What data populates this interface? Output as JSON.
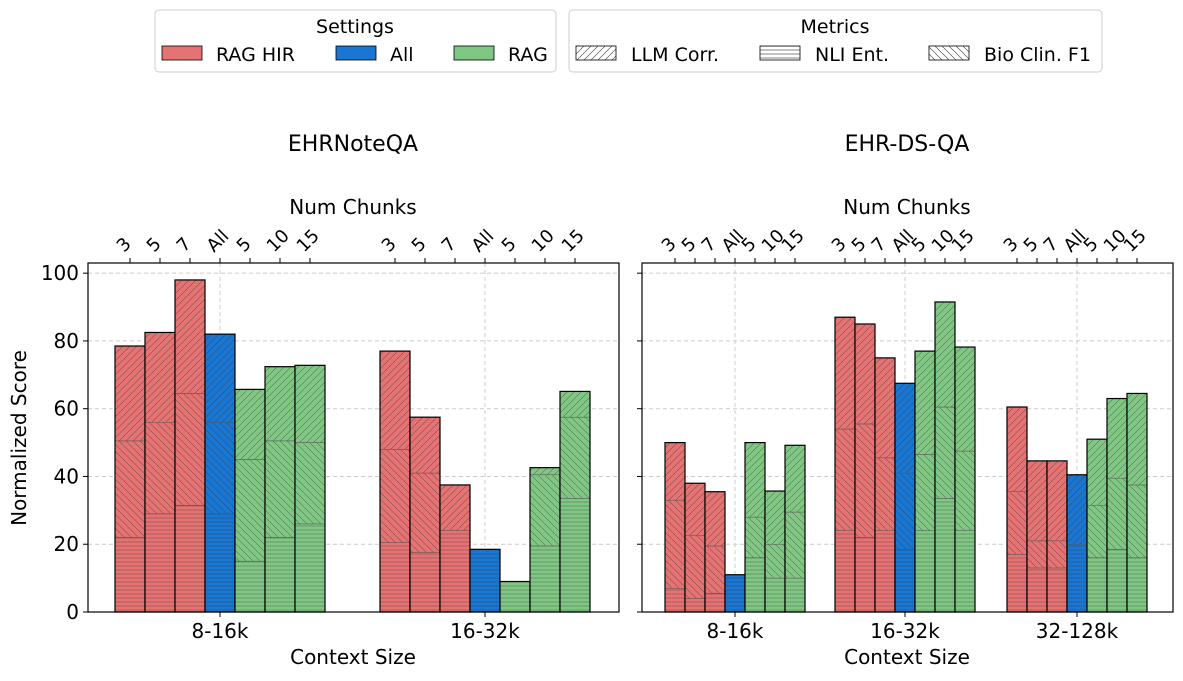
{
  "legends": {
    "settings": {
      "title": "Settings",
      "items": [
        {
          "label": "RAG HIR",
          "color": "#e57373"
        },
        {
          "label": "All",
          "color": "#1976d2"
        },
        {
          "label": "RAG",
          "color": "#81c784"
        }
      ]
    },
    "metrics": {
      "title": "Metrics",
      "items": [
        {
          "label": "LLM Corr.",
          "pattern": "diag-up"
        },
        {
          "label": "NLI Ent.",
          "pattern": "horizontal"
        },
        {
          "label": "Bio Clin. F1",
          "pattern": "diag-down"
        }
      ]
    }
  },
  "colors": {
    "RAG HIR": "#e57373",
    "All": "#1976d2",
    "RAG": "#81c784"
  },
  "chart_data": [
    {
      "type": "bar",
      "stacked": true,
      "title": "EHRNoteQA",
      "xlabel": "Context Size",
      "ylabel": "Normalized Score",
      "top_xlabel": "Num Chunks",
      "ylim": [
        0,
        103
      ],
      "yticks": [
        0,
        20,
        40,
        60,
        80,
        100
      ],
      "grid": true,
      "categories": [
        "8-16k",
        "16-32k"
      ],
      "stack_order": [
        "NLI Ent.",
        "Bio Clin. F1",
        "LLM Corr."
      ],
      "groups": [
        {
          "category": "8-16k",
          "bars": [
            {
              "chunks": "3",
              "setting": "RAG HIR",
              "segments": [
                22,
                28.5,
                28
              ]
            },
            {
              "chunks": "5",
              "setting": "RAG HIR",
              "segments": [
                29,
                27,
                26.5
              ]
            },
            {
              "chunks": "7",
              "setting": "RAG HIR",
              "segments": [
                31.5,
                33,
                33.5
              ]
            },
            {
              "chunks": "All",
              "setting": "All",
              "segments": [
                29,
                27,
                26
              ]
            },
            {
              "chunks": "5",
              "setting": "RAG",
              "segments": [
                15,
                30,
                20.7
              ]
            },
            {
              "chunks": "10",
              "setting": "RAG",
              "segments": [
                22,
                28.5,
                21.9
              ]
            },
            {
              "chunks": "15",
              "setting": "RAG",
              "segments": [
                26,
                24,
                22.8
              ]
            }
          ]
        },
        {
          "category": "16-32k",
          "bars": [
            {
              "chunks": "3",
              "setting": "RAG HIR",
              "segments": [
                20.5,
                27.5,
                29
              ]
            },
            {
              "chunks": "5",
              "setting": "RAG HIR",
              "segments": [
                17.5,
                23.5,
                16.5
              ]
            },
            {
              "chunks": "7",
              "setting": "RAG HIR",
              "segments": [
                24,
                0,
                13.5
              ]
            },
            {
              "chunks": "All",
              "setting": "All",
              "segments": [
                18.5,
                0,
                0
              ]
            },
            {
              "chunks": "5",
              "setting": "RAG",
              "segments": [
                9,
                0,
                0
              ]
            },
            {
              "chunks": "10",
              "setting": "RAG",
              "segments": [
                19.5,
                21,
                2.1
              ]
            },
            {
              "chunks": "15",
              "setting": "RAG",
              "segments": [
                33.5,
                24,
                7.6
              ]
            }
          ]
        }
      ]
    },
    {
      "type": "bar",
      "stacked": true,
      "title": "EHR-DS-QA",
      "xlabel": "Context Size",
      "ylabel": "",
      "top_xlabel": "Num Chunks",
      "ylim": [
        0,
        103
      ],
      "yticks": [
        0,
        20,
        40,
        60,
        80,
        100
      ],
      "grid": true,
      "categories": [
        "8-16k",
        "16-32k",
        "32-128k"
      ],
      "stack_order": [
        "NLI Ent.",
        "Bio Clin. F1",
        "LLM Corr."
      ],
      "groups": [
        {
          "category": "8-16k",
          "bars": [
            {
              "chunks": "3",
              "setting": "RAG HIR",
              "segments": [
                7,
                26,
                17
              ]
            },
            {
              "chunks": "5",
              "setting": "RAG HIR",
              "segments": [
                4,
                18.5,
                15.5
              ]
            },
            {
              "chunks": "7",
              "setting": "RAG HIR",
              "segments": [
                5.5,
                14,
                16
              ]
            },
            {
              "chunks": "All",
              "setting": "All",
              "segments": [
                11,
                0,
                0
              ]
            },
            {
              "chunks": "5",
              "setting": "RAG",
              "segments": [
                16,
                12,
                22
              ]
            },
            {
              "chunks": "10",
              "setting": "RAG",
              "segments": [
                10,
                10,
                15.7
              ]
            },
            {
              "chunks": "15",
              "setting": "RAG",
              "segments": [
                10,
                19.5,
                19.7
              ]
            }
          ]
        },
        {
          "category": "16-32k",
          "bars": [
            {
              "chunks": "3",
              "setting": "RAG HIR",
              "segments": [
                24,
                30,
                33
              ]
            },
            {
              "chunks": "5",
              "setting": "RAG HIR",
              "segments": [
                22,
                33.5,
                29.5
              ]
            },
            {
              "chunks": "7",
              "setting": "RAG HIR",
              "segments": [
                24,
                21.5,
                29.5
              ]
            },
            {
              "chunks": "All",
              "setting": "All",
              "segments": [
                18.5,
                22.5,
                26.5
              ]
            },
            {
              "chunks": "5",
              "setting": "RAG",
              "segments": [
                24,
                22.5,
                30.5
              ]
            },
            {
              "chunks": "10",
              "setting": "RAG",
              "segments": [
                33.5,
                27,
                31
              ]
            },
            {
              "chunks": "15",
              "setting": "RAG",
              "segments": [
                24,
                23.5,
                30.7
              ]
            }
          ]
        },
        {
          "category": "32-128k",
          "bars": [
            {
              "chunks": "3",
              "setting": "RAG HIR",
              "segments": [
                17,
                18.5,
                25
              ]
            },
            {
              "chunks": "5",
              "setting": "RAG HIR",
              "segments": [
                13,
                8,
                23.6
              ]
            },
            {
              "chunks": "7",
              "setting": "RAG HIR",
              "segments": [
                13,
                8,
                23.6
              ]
            },
            {
              "chunks": "All",
              "setting": "All",
              "segments": [
                20,
                0,
                20.5
              ]
            },
            {
              "chunks": "5",
              "setting": "RAG",
              "segments": [
                16,
                15.5,
                19.5
              ]
            },
            {
              "chunks": "10",
              "setting": "RAG",
              "segments": [
                18.5,
                21,
                23.5
              ]
            },
            {
              "chunks": "15",
              "setting": "RAG",
              "segments": [
                16,
                21.5,
                27
              ]
            }
          ]
        }
      ]
    }
  ]
}
